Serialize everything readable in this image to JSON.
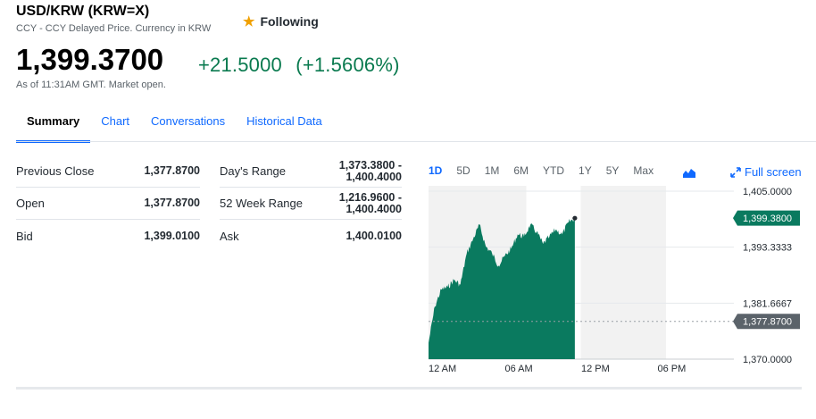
{
  "header": {
    "title": "USD/KRW (KRW=X)",
    "subtitle": "CCY - CCY Delayed Price. Currency in KRW",
    "follow_label": "Following"
  },
  "quote": {
    "price": "1,399.3700",
    "change": "+21.5000",
    "change_pct": "(+1.5606%)",
    "as_of": "As of 11:31AM GMT. Market open."
  },
  "tabs": [
    "Summary",
    "Chart",
    "Conversations",
    "Historical Data"
  ],
  "stats_left": [
    {
      "label": "Previous Close",
      "value": "1,377.8700"
    },
    {
      "label": "Open",
      "value": "1,377.8700"
    },
    {
      "label": "Bid",
      "value": "1,399.0100"
    }
  ],
  "stats_right": [
    {
      "label": "Day's Range",
      "value_line1": "1,373.3800 -",
      "value_line2": "1,400.4000"
    },
    {
      "label": "52 Week Range",
      "value_line1": "1,216.9600 -",
      "value_line2": "1,400.4000"
    },
    {
      "label": "Ask",
      "value_line1": "1,400.0100",
      "value_line2": ""
    }
  ],
  "chart": {
    "ranges": [
      "1D",
      "5D",
      "1M",
      "6M",
      "YTD",
      "1Y",
      "5Y",
      "Max"
    ],
    "active_range": "1D",
    "full_screen_label": "Full screen",
    "y_ticks": [
      "1,405.0000",
      "1,393.3333",
      "1,381.6667",
      "1,370.0000"
    ],
    "x_ticks": [
      "12 AM",
      "06 AM",
      "12 PM",
      "06 PM"
    ],
    "current_label": "1,399.3800",
    "prev_close_label": "1,377.8700",
    "colors": {
      "area": "#0a7a5f",
      "current_badge": "#0a7a5f",
      "prev_badge": "#5b636a",
      "shade": "#f2f2f2"
    }
  },
  "chart_data": {
    "type": "area",
    "ylim": [
      1370.0,
      1405.0
    ],
    "x_labels": [
      "12 AM",
      "06 AM",
      "12 PM",
      "06 PM"
    ],
    "x_hours": [
      0,
      0.5,
      1,
      1.5,
      2,
      2.5,
      3,
      3.5,
      4,
      4.5,
      5,
      5.5,
      6,
      6.5,
      7,
      7.5,
      8,
      8.5,
      9,
      9.5,
      10,
      10.5,
      11,
      11.5
    ],
    "values": [
      1373.4,
      1381.0,
      1384.5,
      1385.0,
      1386.5,
      1385.5,
      1392.0,
      1395.0,
      1398.0,
      1393.5,
      1392.0,
      1389.5,
      1391.5,
      1393.0,
      1396.0,
      1395.5,
      1398.0,
      1396.5,
      1394.0,
      1395.5,
      1397.0,
      1396.0,
      1398.5,
      1399.38
    ],
    "previous_close": 1377.87,
    "last": 1399.38
  }
}
